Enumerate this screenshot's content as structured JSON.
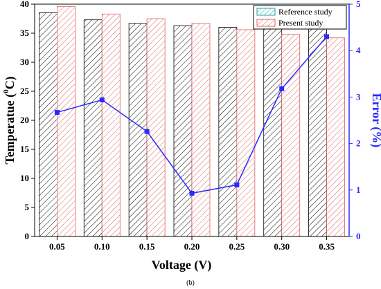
{
  "chart_data": {
    "type": "bar",
    "caption": "(b)",
    "categories": [
      "0.05",
      "0.10",
      "0.15",
      "0.20",
      "0.25",
      "0.30",
      "0.35"
    ],
    "series": [
      {
        "name": "Reference study",
        "values": [
          38.5,
          37.3,
          36.7,
          36.3,
          36.0,
          35.8,
          35.7
        ],
        "color": "#000000"
      },
      {
        "name": "Present study",
        "values": [
          39.6,
          38.3,
          37.5,
          36.7,
          35.6,
          34.8,
          34.2
        ],
        "color": "#e06060"
      }
    ],
    "line_series": {
      "values": [
        2.67,
        2.94,
        2.26,
        0.93,
        1.11,
        3.18,
        4.3
      ],
      "color": "#2a2aff"
    },
    "xlabel": "Voltage (V)",
    "ylabel": {
      "text": "Temperatue (",
      "superscript": "0",
      "suffix": "C)"
    },
    "y2label": "Error (%)",
    "ylim": [
      0,
      40
    ],
    "yticks": [
      0,
      5,
      10,
      15,
      20,
      25,
      30,
      35,
      40
    ],
    "y2lim": [
      0,
      5
    ],
    "y2ticks": [
      0,
      1,
      2,
      3,
      4,
      5
    ],
    "legend_position": "top-right",
    "grid": false
  }
}
